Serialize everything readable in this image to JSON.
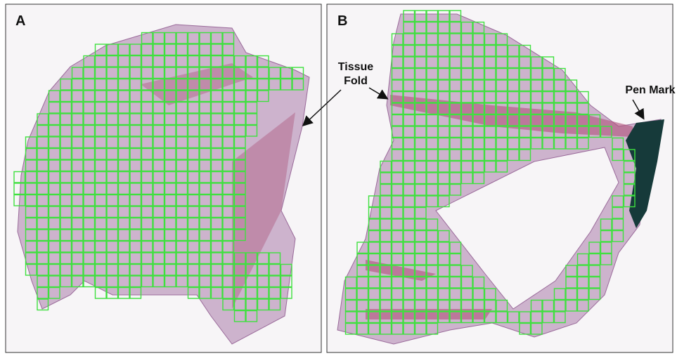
{
  "panels": [
    {
      "label": "A"
    },
    {
      "label": "B"
    }
  ],
  "annotations": {
    "tissue_fold": [
      "Tissue",
      "Fold"
    ],
    "pen_mark": "Pen Mark"
  }
}
